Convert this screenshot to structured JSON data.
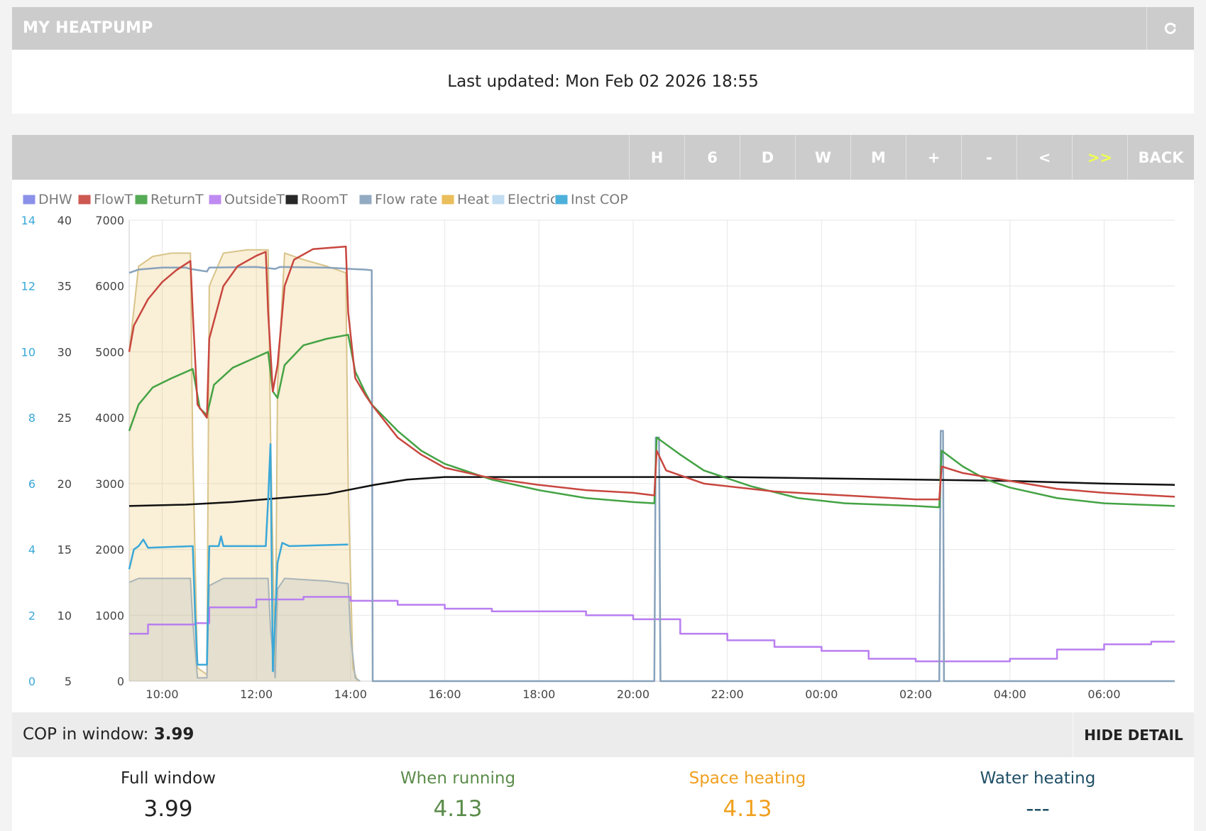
{
  "header": {
    "title": "MY HEATPUMP",
    "refresh_icon": "refresh-icon"
  },
  "updated": {
    "text": "Last updated: Mon Feb 02 2026 18:55"
  },
  "toolbar": {
    "buttons": [
      {
        "label": "H",
        "active": false
      },
      {
        "label": "6",
        "active": false
      },
      {
        "label": "D",
        "active": false
      },
      {
        "label": "W",
        "active": false
      },
      {
        "label": "M",
        "active": false
      },
      {
        "label": "+",
        "active": false
      },
      {
        "label": "-",
        "active": false
      },
      {
        "label": "<",
        "active": false
      },
      {
        "label": ">>",
        "active": true
      },
      {
        "label": "BACK",
        "active": false
      }
    ]
  },
  "colors": {
    "DHW": "#7f86e6",
    "FlowT": "#c8473f",
    "ReturnT": "#44a344",
    "OutsideT": "#b97ef0",
    "RoomT": "#111111",
    "Flow rate": "#88a2bc",
    "Heat": "#e8b84a",
    "Electric": "#bcd9f0",
    "Inst COP": "#3aa8d8"
  },
  "chart_data": {
    "type": "line",
    "legend": [
      "DHW",
      "FlowT",
      "ReturnT",
      "OutsideT",
      "RoomT",
      "Flow rate",
      "Heat",
      "Electric",
      "Inst COP"
    ],
    "legend_position": "top-left",
    "grid": true,
    "x_unit": "hours since 00:00 of day 1",
    "x_range": [
      9.3,
      31.5
    ],
    "x_ticks": [
      "10:00",
      "12:00",
      "14:00",
      "16:00",
      "18:00",
      "20:00",
      "22:00",
      "00:00",
      "02:00",
      "04:00",
      "06:00"
    ],
    "y_axes": {
      "cop": {
        "ticks": [
          0,
          2,
          4,
          6,
          8,
          10,
          12,
          14
        ],
        "range": [
          0,
          14
        ]
      },
      "temperature": {
        "ticks": [
          5,
          10,
          15,
          20,
          25,
          30,
          35,
          40
        ],
        "range": [
          5,
          40
        ]
      },
      "power": {
        "ticks": [
          0,
          1000,
          2000,
          3000,
          4000,
          5000,
          6000,
          7000
        ],
        "range": [
          0,
          7000
        ]
      }
    },
    "heating_cycles": [
      [
        9.3,
        10.65
      ],
      [
        10.95,
        12.25
      ],
      [
        12.45,
        13.95
      ]
    ],
    "series": [
      {
        "name": "FlowT",
        "axis": "temperature",
        "points": [
          [
            9.3,
            30
          ],
          [
            9.4,
            32
          ],
          [
            9.7,
            34
          ],
          [
            10.0,
            35.3
          ],
          [
            10.3,
            36.2
          ],
          [
            10.6,
            36.9
          ],
          [
            10.65,
            33
          ],
          [
            10.75,
            26
          ],
          [
            10.95,
            25
          ],
          [
            11.0,
            31
          ],
          [
            11.3,
            35
          ],
          [
            11.6,
            36.5
          ],
          [
            12.0,
            37.3
          ],
          [
            12.2,
            37.6
          ],
          [
            12.25,
            33
          ],
          [
            12.35,
            27
          ],
          [
            12.45,
            29
          ],
          [
            12.6,
            35
          ],
          [
            12.8,
            37
          ],
          [
            13.2,
            37.8
          ],
          [
            13.9,
            38
          ],
          [
            13.95,
            33
          ],
          [
            14.1,
            28
          ],
          [
            14.3,
            26.8
          ],
          [
            14.45,
            26
          ],
          [
            15.0,
            23.5
          ],
          [
            15.5,
            22.2
          ],
          [
            16.0,
            21.2
          ],
          [
            17.0,
            20.4
          ],
          [
            18.0,
            19.9
          ],
          [
            19.0,
            19.5
          ],
          [
            20.0,
            19.3
          ],
          [
            20.45,
            19.1
          ],
          [
            20.5,
            22.5
          ],
          [
            20.7,
            21
          ],
          [
            21.5,
            20
          ],
          [
            23.0,
            19.4
          ],
          [
            24.5,
            19.1
          ],
          [
            26.0,
            18.8
          ],
          [
            26.5,
            18.8
          ],
          [
            26.55,
            21.3
          ],
          [
            27.0,
            20.8
          ],
          [
            28.0,
            20.2
          ],
          [
            29.0,
            19.6
          ],
          [
            30.0,
            19.3
          ],
          [
            31.5,
            19.0
          ]
        ]
      },
      {
        "name": "ReturnT",
        "axis": "temperature",
        "points": [
          [
            9.3,
            24
          ],
          [
            9.5,
            26
          ],
          [
            9.8,
            27.3
          ],
          [
            10.2,
            28
          ],
          [
            10.65,
            28.7
          ],
          [
            10.8,
            25.7
          ],
          [
            10.95,
            25.2
          ],
          [
            11.1,
            27.5
          ],
          [
            11.5,
            28.8
          ],
          [
            12.0,
            29.6
          ],
          [
            12.25,
            30
          ],
          [
            12.35,
            27
          ],
          [
            12.45,
            26.5
          ],
          [
            12.6,
            29
          ],
          [
            13.0,
            30.5
          ],
          [
            13.5,
            31
          ],
          [
            13.95,
            31.3
          ],
          [
            14.1,
            28.5
          ],
          [
            14.3,
            27
          ],
          [
            14.45,
            26
          ],
          [
            15.0,
            24
          ],
          [
            15.5,
            22.5
          ],
          [
            16.0,
            21.5
          ],
          [
            17.0,
            20.3
          ],
          [
            18.0,
            19.5
          ],
          [
            19.0,
            18.9
          ],
          [
            20.0,
            18.6
          ],
          [
            20.45,
            18.5
          ],
          [
            20.5,
            23.5
          ],
          [
            21.0,
            22.2
          ],
          [
            21.5,
            21
          ],
          [
            22.5,
            19.8
          ],
          [
            23.5,
            18.9
          ],
          [
            24.5,
            18.5
          ],
          [
            26.0,
            18.3
          ],
          [
            26.5,
            18.2
          ],
          [
            26.55,
            22.5
          ],
          [
            27.0,
            21.3
          ],
          [
            27.5,
            20.3
          ],
          [
            28.0,
            19.7
          ],
          [
            29.0,
            18.9
          ],
          [
            30.0,
            18.5
          ],
          [
            31.5,
            18.3
          ]
        ]
      },
      {
        "name": "OutsideT",
        "axis": "temperature",
        "points": [
          [
            9.3,
            8.6
          ],
          [
            9.7,
            8.6
          ],
          [
            9.7,
            9.3
          ],
          [
            10.7,
            9.3
          ],
          [
            10.7,
            9.4
          ],
          [
            11.0,
            9.4
          ],
          [
            11.0,
            10.6
          ],
          [
            12.0,
            10.6
          ],
          [
            12.0,
            11.2
          ],
          [
            13.0,
            11.2
          ],
          [
            13.0,
            11.4
          ],
          [
            14.0,
            11.4
          ],
          [
            14.0,
            11.1
          ],
          [
            15.0,
            11.1
          ],
          [
            15.0,
            10.8
          ],
          [
            16.0,
            10.8
          ],
          [
            16.0,
            10.5
          ],
          [
            17.0,
            10.5
          ],
          [
            17.0,
            10.3
          ],
          [
            19.0,
            10.3
          ],
          [
            19.0,
            10.0
          ],
          [
            20.0,
            10.0
          ],
          [
            20.0,
            9.7
          ],
          [
            21.0,
            9.7
          ],
          [
            21.0,
            8.6
          ],
          [
            22.0,
            8.6
          ],
          [
            22.0,
            8.1
          ],
          [
            23.0,
            8.1
          ],
          [
            23.0,
            7.6
          ],
          [
            24.0,
            7.6
          ],
          [
            24.0,
            7.3
          ],
          [
            25.0,
            7.3
          ],
          [
            25.0,
            6.7
          ],
          [
            26.0,
            6.7
          ],
          [
            26.0,
            6.5
          ],
          [
            28.0,
            6.5
          ],
          [
            28.0,
            6.7
          ],
          [
            29.0,
            6.7
          ],
          [
            29.0,
            7.4
          ],
          [
            30.0,
            7.4
          ],
          [
            30.0,
            7.8
          ],
          [
            31.0,
            7.8
          ],
          [
            31.0,
            8.0
          ],
          [
            31.5,
            8.0
          ]
        ]
      },
      {
        "name": "RoomT",
        "axis": "temperature",
        "points": [
          [
            9.3,
            18.3
          ],
          [
            10.5,
            18.4
          ],
          [
            11.5,
            18.6
          ],
          [
            12.5,
            18.9
          ],
          [
            13.5,
            19.2
          ],
          [
            14.5,
            19.9
          ],
          [
            15.2,
            20.3
          ],
          [
            16.0,
            20.5
          ],
          [
            18.0,
            20.5
          ],
          [
            20.0,
            20.5
          ],
          [
            22.0,
            20.5
          ],
          [
            24.0,
            20.4
          ],
          [
            26.0,
            20.3
          ],
          [
            28.0,
            20.2
          ],
          [
            30.0,
            20.0
          ],
          [
            31.5,
            19.9
          ]
        ]
      },
      {
        "name": "Flow rate",
        "axis": "power",
        "points": [
          [
            9.3,
            6200
          ],
          [
            9.5,
            6250
          ],
          [
            10.0,
            6280
          ],
          [
            10.5,
            6280
          ],
          [
            10.6,
            6260
          ],
          [
            10.95,
            6220
          ],
          [
            11.0,
            6280
          ],
          [
            12.0,
            6290
          ],
          [
            12.4,
            6260
          ],
          [
            12.5,
            6290
          ],
          [
            13.5,
            6280
          ],
          [
            14.0,
            6260
          ],
          [
            14.3,
            6250
          ],
          [
            14.45,
            6240
          ],
          [
            14.47,
            0
          ],
          [
            20.45,
            0
          ],
          [
            20.48,
            3700
          ],
          [
            20.55,
            3700
          ],
          [
            20.58,
            0
          ],
          [
            26.5,
            0
          ],
          [
            26.53,
            3800
          ],
          [
            26.58,
            3800
          ],
          [
            26.6,
            0
          ],
          [
            31.5,
            0
          ]
        ]
      },
      {
        "name": "Heat",
        "axis": "power",
        "points": [
          [
            9.3,
            5000
          ],
          [
            9.5,
            6300
          ],
          [
            9.8,
            6450
          ],
          [
            10.2,
            6500
          ],
          [
            10.6,
            6500
          ],
          [
            10.65,
            3500
          ],
          [
            10.75,
            200
          ],
          [
            10.95,
            100
          ],
          [
            11.0,
            6000
          ],
          [
            11.3,
            6500
          ],
          [
            11.8,
            6550
          ],
          [
            12.25,
            6550
          ],
          [
            12.3,
            3800
          ],
          [
            12.4,
            200
          ],
          [
            12.45,
            4500
          ],
          [
            12.6,
            6500
          ],
          [
            13.0,
            6400
          ],
          [
            13.5,
            6300
          ],
          [
            13.9,
            6200
          ],
          [
            13.95,
            3000
          ],
          [
            14.05,
            200
          ],
          [
            14.15,
            0
          ]
        ]
      },
      {
        "name": "Electric",
        "axis": "power",
        "points": [
          [
            9.3,
            1500
          ],
          [
            9.5,
            1560
          ],
          [
            10.0,
            1560
          ],
          [
            10.6,
            1560
          ],
          [
            10.65,
            900
          ],
          [
            10.75,
            50
          ],
          [
            10.95,
            50
          ],
          [
            11.0,
            1450
          ],
          [
            11.3,
            1560
          ],
          [
            12.25,
            1560
          ],
          [
            12.3,
            800
          ],
          [
            12.4,
            50
          ],
          [
            12.45,
            1400
          ],
          [
            12.6,
            1560
          ],
          [
            13.5,
            1520
          ],
          [
            13.95,
            1480
          ],
          [
            14.0,
            700
          ],
          [
            14.1,
            50
          ],
          [
            14.2,
            0
          ]
        ]
      },
      {
        "name": "Inst COP",
        "axis": "cop",
        "points": [
          [
            9.3,
            3.4
          ],
          [
            9.4,
            4.0
          ],
          [
            9.5,
            4.1
          ],
          [
            9.6,
            4.3
          ],
          [
            9.7,
            4.05
          ],
          [
            10.65,
            4.1
          ],
          [
            10.7,
            2.0
          ],
          [
            10.75,
            0.5
          ],
          [
            10.95,
            0.5
          ],
          [
            11.0,
            4.1
          ],
          [
            11.2,
            4.1
          ],
          [
            11.25,
            4.4
          ],
          [
            11.3,
            4.1
          ],
          [
            12.2,
            4.1
          ],
          [
            12.25,
            5.5
          ],
          [
            12.3,
            7.2
          ],
          [
            12.35,
            0.3
          ],
          [
            12.45,
            3.6
          ],
          [
            12.55,
            4.2
          ],
          [
            12.7,
            4.1
          ],
          [
            13.95,
            4.15
          ]
        ]
      },
      {
        "name": "DHW",
        "axis": "temperature",
        "points": []
      }
    ]
  },
  "cop_window": {
    "label": "COP in window:",
    "value": "3.99"
  },
  "hide_detail": {
    "label": "HIDE DETAIL"
  },
  "stats": [
    {
      "label": "Full window",
      "value": "3.99",
      "color": "#222222"
    },
    {
      "label": "When running",
      "value": "4.13",
      "color": "#5b8c4a"
    },
    {
      "label": "Space heating",
      "value": "4.13",
      "color": "#f0a020"
    },
    {
      "label": "Water heating",
      "value": "---",
      "color": "#1f4f66"
    }
  ]
}
